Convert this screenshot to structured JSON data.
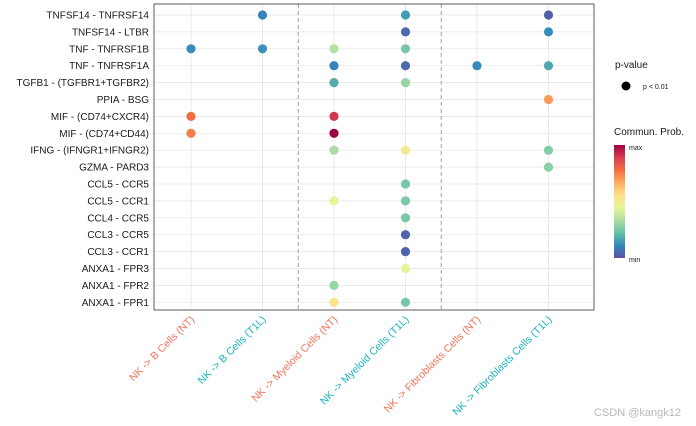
{
  "chart_data": {
    "type": "scatter",
    "subtype": "dot-plot",
    "y_categories": [
      "TNFSF14 - TNFRSF14",
      "TNFSF14 - LTBR",
      "TNF - TNFRSF1B",
      "TNF - TNFRSF1A",
      "TGFB1 - (TGFBR1+TGFBR2)",
      "PPIA - BSG",
      "MIF - (CD74+CXCR4)",
      "MIF - (CD74+CD44)",
      "IFNG - (IFNGR1+IFNGR2)",
      "GZMA - PARD3",
      "CCL5 - CCR5",
      "CCL5 - CCR1",
      "CCL4 - CCR5",
      "CCL3 - CCR5",
      "CCL3 - CCR1",
      "ANXA1 - FPR3",
      "ANXA1 - FPR2",
      "ANXA1 - FPR1"
    ],
    "x_categories": [
      {
        "label": "NK -> B Cells (NT)",
        "color": "#f0735a"
      },
      {
        "label": "NK -> B Cells (T1L)",
        "color": "#1ab3c2"
      },
      {
        "label": "NK -> Myeloid Cells (NT)",
        "color": "#f0735a"
      },
      {
        "label": "NK -> Myeloid Cells (T1L)",
        "color": "#1ab3c2"
      },
      {
        "label": "NK -> Fibroblasts Cells (NT)",
        "color": "#f0735a"
      },
      {
        "label": "NK -> Fibroblasts Cells (T1L)",
        "color": "#1ab3c2"
      }
    ],
    "group_separators_after_column": [
      2,
      4
    ],
    "points": [
      {
        "x": 2,
        "y": 1,
        "prob": 0.1
      },
      {
        "x": 4,
        "y": 1,
        "prob": 0.15
      },
      {
        "x": 6,
        "y": 1,
        "prob": 0.03
      },
      {
        "x": 4,
        "y": 2,
        "prob": 0.05
      },
      {
        "x": 6,
        "y": 2,
        "prob": 0.12
      },
      {
        "x": 1,
        "y": 3,
        "prob": 0.12
      },
      {
        "x": 2,
        "y": 3,
        "prob": 0.13
      },
      {
        "x": 3,
        "y": 3,
        "prob": 0.35
      },
      {
        "x": 4,
        "y": 3,
        "prob": 0.25
      },
      {
        "x": 3,
        "y": 4,
        "prob": 0.1
      },
      {
        "x": 4,
        "y": 4,
        "prob": 0.05
      },
      {
        "x": 5,
        "y": 4,
        "prob": 0.12
      },
      {
        "x": 6,
        "y": 4,
        "prob": 0.17
      },
      {
        "x": 3,
        "y": 5,
        "prob": 0.18
      },
      {
        "x": 4,
        "y": 5,
        "prob": 0.3
      },
      {
        "x": 6,
        "y": 6,
        "prob": 0.7
      },
      {
        "x": 1,
        "y": 7,
        "prob": 0.78
      },
      {
        "x": 3,
        "y": 7,
        "prob": 0.9
      },
      {
        "x": 1,
        "y": 8,
        "prob": 0.75
      },
      {
        "x": 3,
        "y": 8,
        "prob": 1.0
      },
      {
        "x": 3,
        "y": 9,
        "prob": 0.33
      },
      {
        "x": 4,
        "y": 9,
        "prob": 0.52
      },
      {
        "x": 6,
        "y": 9,
        "prob": 0.27
      },
      {
        "x": 6,
        "y": 10,
        "prob": 0.28
      },
      {
        "x": 4,
        "y": 11,
        "prob": 0.25
      },
      {
        "x": 3,
        "y": 12,
        "prob": 0.45
      },
      {
        "x": 4,
        "y": 12,
        "prob": 0.25
      },
      {
        "x": 4,
        "y": 13,
        "prob": 0.25
      },
      {
        "x": 4,
        "y": 14,
        "prob": 0.04
      },
      {
        "x": 4,
        "y": 15,
        "prob": 0.04
      },
      {
        "x": 4,
        "y": 16,
        "prob": 0.45
      },
      {
        "x": 3,
        "y": 17,
        "prob": 0.3
      },
      {
        "x": 3,
        "y": 18,
        "prob": 0.55
      },
      {
        "x": 4,
        "y": 18,
        "prob": 0.25
      }
    ],
    "legend": {
      "pvalue_title": "p-value",
      "pvalue_item": "p < 0.01",
      "color_title": "Commun. Prob.",
      "color_max": "max",
      "color_min": "min"
    }
  },
  "colors": {
    "palette": [
      "#5e4fa2",
      "#3288bd",
      "#66c2a5",
      "#abdda4",
      "#e6f598",
      "#fee08b",
      "#fdae61",
      "#f46d43",
      "#d53e4f",
      "#9e0142"
    ],
    "grid": "#e3e3e3",
    "separator": "#a0a0a0"
  },
  "watermark": "CSDN @kangk12"
}
